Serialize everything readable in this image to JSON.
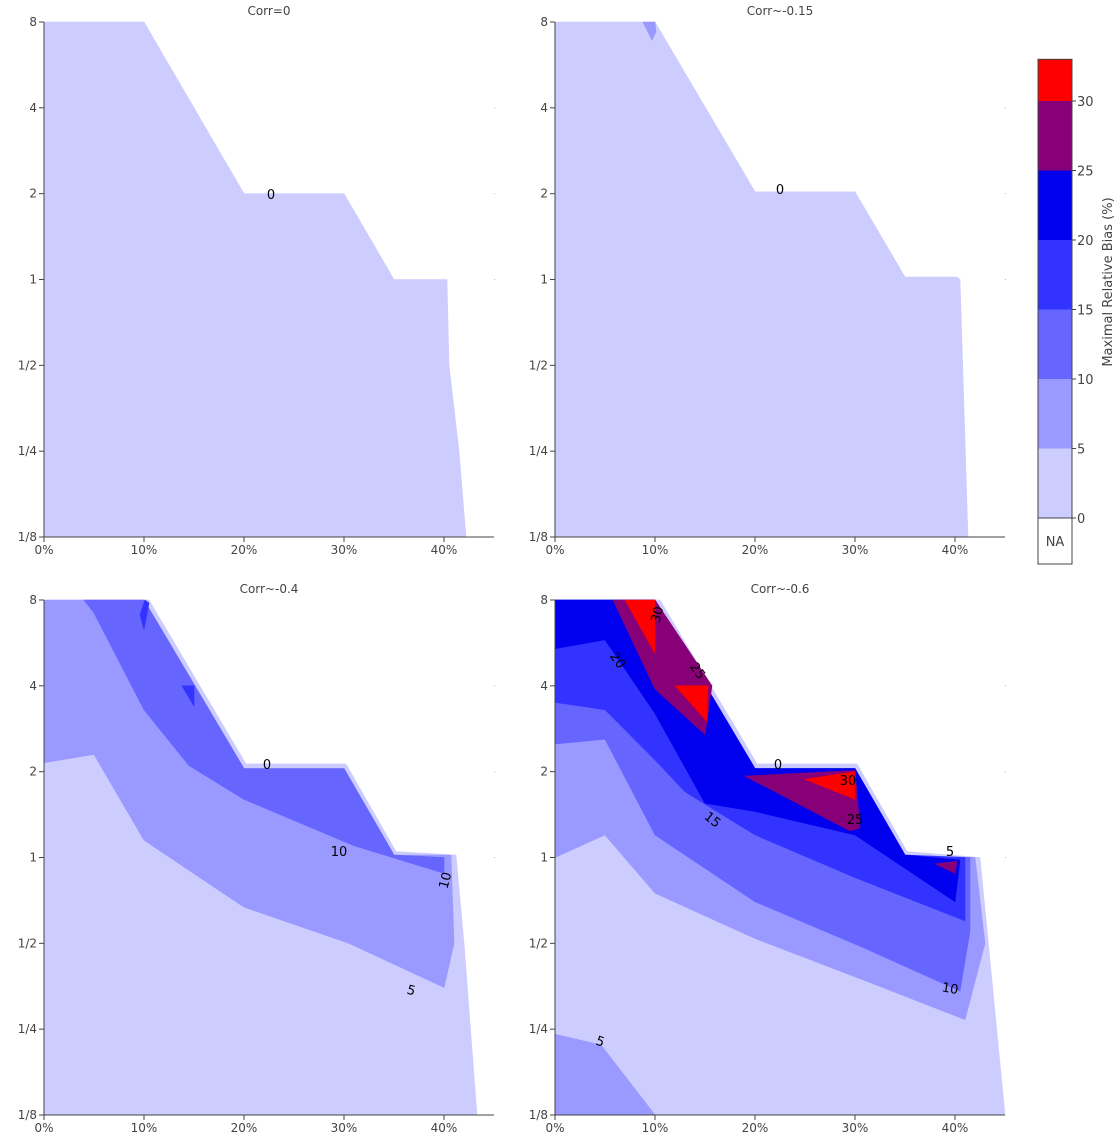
{
  "chart_data": {
    "type": "contour",
    "colorbar": {
      "title": "Maximal Relative Bias (%)",
      "ticks": [
        "0",
        "5",
        "10",
        "15",
        "20",
        "25",
        "30"
      ],
      "na_label": "NA",
      "levels": [
        {
          "from": 0,
          "to": 5,
          "color": "#ccccff"
        },
        {
          "from": 5,
          "to": 10,
          "color": "#9999ff"
        },
        {
          "from": 10,
          "to": 15,
          "color": "#6666ff"
        },
        {
          "from": 15,
          "to": 20,
          "color": "#3333ff"
        },
        {
          "from": 20,
          "to": 25,
          "color": "#0000ee"
        },
        {
          "from": 25,
          "to": 30,
          "color": "#880077"
        },
        {
          "from": 30,
          "to": 33,
          "color": "#ff0000"
        }
      ],
      "na_color": "#ffffff"
    },
    "x_ticks": [
      "0%",
      "10%",
      "20%",
      "30%",
      "40%"
    ],
    "x_values": [
      0,
      10,
      20,
      30,
      40
    ],
    "y_ticks": [
      "1/8",
      "1/4",
      "1/2",
      "1",
      "2",
      "4",
      "8"
    ],
    "y_values": [
      0.125,
      0.25,
      0.5,
      1,
      2,
      4,
      8
    ],
    "xlim": [
      0,
      45
    ],
    "ylim": [
      0.125,
      8
    ],
    "yscale": "log2",
    "panels": [
      {
        "title": "Corr=0",
        "regions": [
          {
            "level": 0,
            "points": [
              [
                0,
                8
              ],
              [
                10,
                8
              ],
              [
                20,
                2
              ],
              [
                30,
                2
              ],
              [
                35,
                1
              ],
              [
                40.3,
                1
              ],
              [
                40.5,
                0.5
              ],
              [
                41.5,
                0.25
              ],
              [
                42.2,
                0.125
              ],
              [
                0,
                0.125
              ]
            ]
          }
        ],
        "labels": [
          {
            "text": "0",
            "x": 22.7,
            "y": 1.97,
            "angle": 0
          }
        ]
      },
      {
        "title": "Corr~-0.15",
        "regions": [
          {
            "level": 0,
            "points": [
              [
                0,
                8
              ],
              [
                10,
                8
              ],
              [
                20,
                2.03
              ],
              [
                30,
                2.03
              ],
              [
                35,
                1.02
              ],
              [
                40.2,
                1.02
              ],
              [
                40.5,
                1
              ],
              [
                41.3,
                0.125
              ],
              [
                0,
                0.125
              ]
            ]
          },
          {
            "level": 1,
            "points": [
              [
                8.8,
                8
              ],
              [
                10,
                8
              ],
              [
                10.1,
                7.4
              ],
              [
                9.7,
                6.9
              ]
            ]
          }
        ],
        "labels": [
          {
            "text": "0",
            "x": 22.5,
            "y": 2.05,
            "angle": 0
          }
        ]
      },
      {
        "title": "Corr~-0.4",
        "regions": [
          {
            "level": 0,
            "points": [
              [
                0,
                8
              ],
              [
                10.5,
                8
              ],
              [
                20.2,
                2.13
              ],
              [
                30.2,
                2.13
              ],
              [
                35.2,
                1.05
              ],
              [
                41.2,
                1.02
              ],
              [
                42,
                0.5
              ],
              [
                43.3,
                0.125
              ],
              [
                0,
                0.125
              ]
            ]
          },
          {
            "level": 1,
            "points": [
              [
                0,
                8
              ],
              [
                10,
                8
              ],
              [
                20,
                2.05
              ],
              [
                30,
                2.05
              ],
              [
                35,
                1.02
              ],
              [
                40.7,
                1.02
              ],
              [
                41,
                0.5
              ],
              [
                40,
                0.35
              ],
              [
                30.5,
                0.5
              ],
              [
                20,
                0.67
              ],
              [
                10,
                1.15
              ],
              [
                5,
                2.3
              ],
              [
                0,
                2.15
              ]
            ]
          },
          {
            "level": 2,
            "points": [
              [
                4,
                8
              ],
              [
                10,
                8
              ],
              [
                20,
                2.05
              ],
              [
                30,
                2.05
              ],
              [
                35,
                1.02
              ],
              [
                40,
                1
              ],
              [
                40,
                0.88
              ],
              [
                31,
                1.1
              ],
              [
                20,
                1.6
              ],
              [
                14.5,
                2.1
              ],
              [
                10,
                3.3
              ],
              [
                5,
                7.2
              ]
            ]
          },
          {
            "level": 3,
            "points": [
              [
                10.1,
                8
              ],
              [
                10.5,
                7.8
              ],
              [
                10,
                6.3
              ],
              [
                9.6,
                7.1
              ]
            ]
          },
          {
            "level": 3,
            "points": [
              [
                13.8,
                4
              ],
              [
                15,
                4
              ],
              [
                15,
                3.4
              ]
            ]
          }
        ],
        "labels": [
          {
            "text": "0",
            "x": 22.3,
            "y": 2.1,
            "angle": 0
          },
          {
            "text": "10",
            "x": 29.5,
            "y": 1.04,
            "angle": 0
          },
          {
            "text": "10",
            "x": 40.2,
            "y": 0.83,
            "angle": -75
          },
          {
            "text": "5",
            "x": 36.7,
            "y": 0.34,
            "angle": 15
          }
        ]
      },
      {
        "title": "Corr~-0.6",
        "regions": [
          {
            "level": 0,
            "points": [
              [
                0,
                8
              ],
              [
                10.5,
                8
              ],
              [
                20.2,
                2.13
              ],
              [
                30.2,
                2.13
              ],
              [
                35.2,
                1.05
              ],
              [
                42.5,
                1
              ],
              [
                45,
                0.125
              ],
              [
                0,
                0.125
              ]
            ]
          },
          {
            "level": 1,
            "points": [
              [
                0,
                8
              ],
              [
                10,
                8
              ],
              [
                20,
                2.05
              ],
              [
                30,
                2.05
              ],
              [
                35,
                1.02
              ],
              [
                42,
                1
              ],
              [
                43,
                0.5
              ],
              [
                41,
                0.27
              ],
              [
                31,
                0.37
              ],
              [
                20,
                0.52
              ],
              [
                10,
                0.75
              ],
              [
                5,
                1.2
              ],
              [
                0,
                1
              ]
            ]
          },
          {
            "level": 1,
            "points": [
              [
                0,
                0.24
              ],
              [
                4.6,
                0.22
              ],
              [
                10,
                0.125
              ],
              [
                0,
                0.125
              ]
            ]
          },
          {
            "level": 2,
            "points": [
              [
                0,
                8
              ],
              [
                10,
                8
              ],
              [
                20,
                2.05
              ],
              [
                30,
                2.05
              ],
              [
                35,
                1.02
              ],
              [
                41.5,
                1
              ],
              [
                41.5,
                0.55
              ],
              [
                40.5,
                0.34
              ],
              [
                31,
                0.48
              ],
              [
                20,
                0.7
              ],
              [
                10,
                1.2
              ],
              [
                5,
                2.6
              ],
              [
                0,
                2.5
              ]
            ]
          },
          {
            "level": 3,
            "points": [
              [
                0,
                8
              ],
              [
                10,
                8
              ],
              [
                20,
                2.05
              ],
              [
                30,
                2.05
              ],
              [
                35,
                1.02
              ],
              [
                41,
                1
              ],
              [
                41,
                0.6
              ],
              [
                30,
                0.85
              ],
              [
                20,
                1.2
              ],
              [
                13,
                1.7
              ],
              [
                10,
                2.2
              ],
              [
                5,
                3.3
              ],
              [
                0,
                3.5
              ]
            ]
          },
          {
            "level": 4,
            "points": [
              [
                0,
                8
              ],
              [
                10,
                8
              ],
              [
                20,
                2.05
              ],
              [
                30,
                2.05
              ],
              [
                35,
                1.02
              ],
              [
                40.5,
                0.98
              ],
              [
                40,
                0.7
              ],
              [
                30,
                1.2
              ],
              [
                20,
                1.45
              ],
              [
                15,
                1.55
              ],
              [
                10,
                3.2
              ],
              [
                5,
                5.8
              ],
              [
                0,
                5.4
              ]
            ]
          },
          {
            "level": 5,
            "points": [
              [
                5.8,
                8
              ],
              [
                10,
                8
              ],
              [
                15.7,
                4
              ],
              [
                15,
                2.7
              ],
              [
                10,
                3.9
              ]
            ]
          },
          {
            "level": 5,
            "points": [
              [
                19,
                1.93
              ],
              [
                30,
                2.02
              ],
              [
                30.5,
                1.27
              ],
              [
                29.5,
                1.24
              ]
            ]
          },
          {
            "level": 5,
            "points": [
              [
                38,
                0.95
              ],
              [
                40.2,
                0.97
              ],
              [
                40,
                0.88
              ]
            ]
          },
          {
            "level": 6,
            "points": [
              [
                7,
                8
              ],
              [
                10,
                8
              ],
              [
                10,
                5.2
              ]
            ]
          },
          {
            "level": 6,
            "points": [
              [
                12,
                4
              ],
              [
                15.3,
                4
              ],
              [
                15.2,
                3
              ]
            ]
          },
          {
            "level": 6,
            "points": [
              [
                25,
                1.88
              ],
              [
                30,
                2
              ],
              [
                30,
                1.6
              ]
            ]
          }
        ],
        "labels": [
          {
            "text": "0",
            "x": 22.3,
            "y": 2.1,
            "angle": 0
          },
          {
            "text": "30",
            "x": 10.3,
            "y": 7.1,
            "angle": -75
          },
          {
            "text": "20",
            "x": 6.2,
            "y": 4.9,
            "angle": 55
          },
          {
            "text": "25",
            "x": 14.2,
            "y": 4.5,
            "angle": 55
          },
          {
            "text": "30",
            "x": 29.3,
            "y": 1.85,
            "angle": 0
          },
          {
            "text": "15",
            "x": 15.7,
            "y": 1.35,
            "angle": 38
          },
          {
            "text": "25",
            "x": 30,
            "y": 1.35,
            "angle": 0
          },
          {
            "text": "5",
            "x": 39.5,
            "y": 1.04,
            "angle": 0
          },
          {
            "text": "10",
            "x": 39.5,
            "y": 0.345,
            "angle": 10
          },
          {
            "text": "5",
            "x": 4.5,
            "y": 0.225,
            "angle": 18
          }
        ]
      }
    ]
  }
}
